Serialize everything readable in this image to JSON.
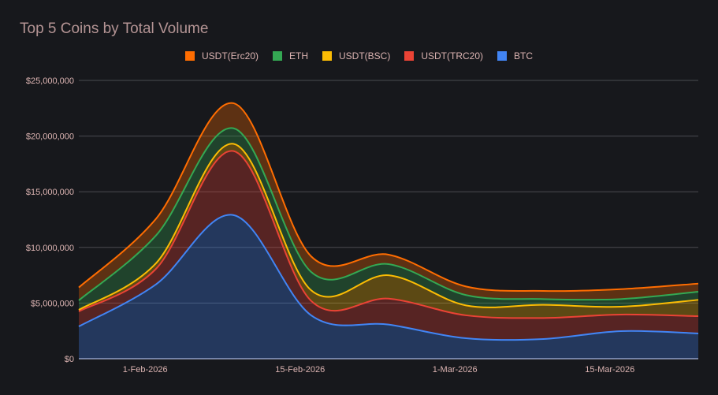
{
  "chart_data": {
    "type": "area",
    "stacked": true,
    "smooth": true,
    "title": "Top 5 Coins by Total Volume",
    "xlabel": "",
    "ylabel": "",
    "ylim": [
      0,
      25000000
    ],
    "yticks": [
      0,
      5000000,
      10000000,
      15000000,
      20000000,
      25000000
    ],
    "ytick_labels": [
      "$0",
      "$5,000,000",
      "$10,000,000",
      "$15,000,000",
      "$20,000,000",
      "$25,000,000"
    ],
    "xrange": [
      "26-Jan-2026",
      "23-Mar-2026"
    ],
    "xticks": [
      "1-Feb-2026",
      "15-Feb-2026",
      "1-Mar-2026",
      "15-Mar-2026"
    ],
    "x": [
      "26-Jan-2026",
      "2-Feb-2026",
      "9-Feb-2026",
      "16-Feb-2026",
      "23-Feb-2026",
      "2-Mar-2026",
      "9-Mar-2026",
      "16-Mar-2026",
      "23-Mar-2026"
    ],
    "x_days": [
      0,
      7,
      14,
      21,
      28,
      35,
      42,
      49,
      56
    ],
    "xtick_days": [
      6,
      20,
      34,
      48
    ],
    "x_day_range": [
      0,
      56
    ],
    "grid": true,
    "legend_position": "top",
    "series": [
      {
        "name": "BTC",
        "color": "#4285f4",
        "values": [
          2900000,
          6700000,
          12900000,
          3900000,
          3070000,
          1840000,
          1770000,
          2480000,
          2270000
        ]
      },
      {
        "name": "USDT(TRC20)",
        "color": "#ea4335",
        "values": [
          1350000,
          1400000,
          5750000,
          1300000,
          2330000,
          2060000,
          1890000,
          1490000,
          1550000
        ]
      },
      {
        "name": "USDT(BSC)",
        "color": "#fbbc04",
        "values": [
          140000,
          500000,
          650000,
          950000,
          2100000,
          890000,
          1180000,
          700000,
          1470000
        ]
      },
      {
        "name": "ETH",
        "color": "#34a853",
        "values": [
          850000,
          2500000,
          1400000,
          1650000,
          1000000,
          930000,
          520000,
          690000,
          730000
        ]
      },
      {
        "name": "USDT(Erc20)",
        "color": "#ff6d01",
        "values": [
          1160000,
          1500000,
          2250000,
          1400000,
          850000,
          770000,
          730000,
          890000,
          730000
        ]
      }
    ],
    "legend": [
      "USDT(Erc20)",
      "ETH",
      "USDT(BSC)",
      "USDT(TRC20)",
      "BTC"
    ]
  }
}
